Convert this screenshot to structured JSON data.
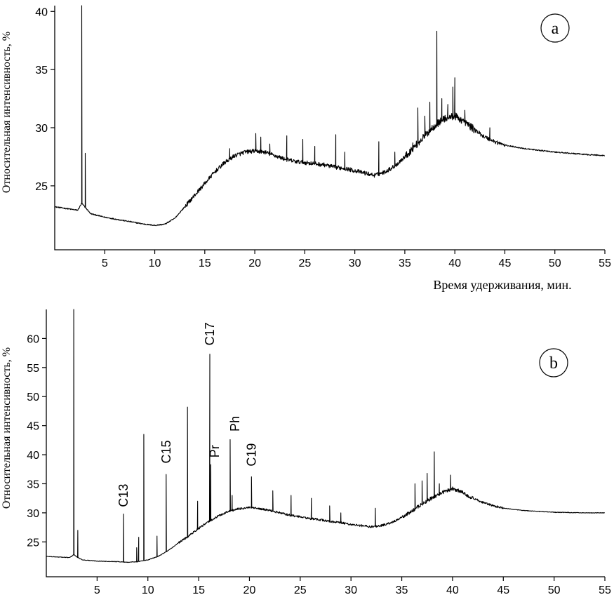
{
  "chart_data": [
    {
      "type": "line",
      "panel_label": "a",
      "xlabel": "Время удерживания, мин.",
      "ylabel": "Относительная интенсивность, %",
      "xlim": [
        0,
        55
      ],
      "ylim": [
        19.5,
        40.5
      ],
      "xticks": [
        5,
        10,
        15,
        20,
        25,
        30,
        35,
        40,
        45,
        50,
        55
      ],
      "yticks": [
        25,
        30,
        35,
        40
      ],
      "series": [
        {
          "name": "a",
          "baseline": [
            [
              0,
              23.2
            ],
            [
              2.3,
              22.9
            ],
            [
              2.7,
              23.5
            ],
            [
              3.2,
              23.0
            ],
            [
              3.6,
              22.6
            ],
            [
              5,
              22.3
            ],
            [
              7,
              22.0
            ],
            [
              9,
              21.7
            ],
            [
              10,
              21.6
            ],
            [
              11,
              21.7
            ],
            [
              12,
              22.2
            ],
            [
              13,
              23.2
            ],
            [
              14,
              24.2
            ],
            [
              15,
              25.2
            ],
            [
              16,
              26.2
            ],
            [
              17,
              27.0
            ],
            [
              18,
              27.6
            ],
            [
              19,
              27.9
            ],
            [
              20,
              28.0
            ],
            [
              21,
              27.9
            ],
            [
              22,
              27.6
            ],
            [
              23,
              27.3
            ],
            [
              24,
              27.1
            ],
            [
              25,
              27.0
            ],
            [
              26,
              26.9
            ],
            [
              27,
              26.8
            ],
            [
              28,
              26.6
            ],
            [
              29,
              26.5
            ],
            [
              30,
              26.3
            ],
            [
              31,
              26.1
            ],
            [
              32,
              25.9
            ],
            [
              33,
              26.2
            ],
            [
              34,
              26.7
            ],
            [
              35,
              27.5
            ],
            [
              36,
              28.4
            ],
            [
              37,
              29.3
            ],
            [
              38,
              30.2
            ],
            [
              39,
              30.8
            ],
            [
              40,
              31.0
            ],
            [
              41,
              30.5
            ],
            [
              42,
              29.8
            ],
            [
              43,
              29.2
            ],
            [
              44,
              28.8
            ],
            [
              45,
              28.5
            ],
            [
              47,
              28.2
            ],
            [
              50,
              27.9
            ],
            [
              53,
              27.7
            ],
            [
              55,
              27.6
            ]
          ],
          "peaks": [
            [
              2.7,
              40.5
            ],
            [
              3.05,
              27.8
            ],
            [
              14,
              24.3
            ],
            [
              17.5,
              28.2
            ],
            [
              20.1,
              29.5
            ],
            [
              20.6,
              29.2
            ],
            [
              21.5,
              28.6
            ],
            [
              23.2,
              29.3
            ],
            [
              24.8,
              29.0
            ],
            [
              26.0,
              28.4
            ],
            [
              28.1,
              29.4
            ],
            [
              29.0,
              27.9
            ],
            [
              32.4,
              28.8
            ],
            [
              34.0,
              27.9
            ],
            [
              35.8,
              28.7
            ],
            [
              36.3,
              31.7
            ],
            [
              37.0,
              31.0
            ],
            [
              37.5,
              32.2
            ],
            [
              38.2,
              38.3
            ],
            [
              38.7,
              32.5
            ],
            [
              39.3,
              32.0
            ],
            [
              39.8,
              33.5
            ],
            [
              40.0,
              34.3
            ],
            [
              41.0,
              31.5
            ],
            [
              43.5,
              30.0
            ]
          ]
        }
      ]
    },
    {
      "type": "line",
      "panel_label": "b",
      "xlabel": "",
      "ylabel": "Относительная интенсивность, %",
      "xlim": [
        0,
        55
      ],
      "ylim": [
        19,
        65
      ],
      "xticks": [
        5,
        10,
        15,
        20,
        25,
        30,
        35,
        40,
        45,
        50,
        55
      ],
      "yticks": [
        25,
        30,
        35,
        40,
        45,
        50,
        55,
        60
      ],
      "series": [
        {
          "name": "b",
          "baseline": [
            [
              0,
              22.5
            ],
            [
              2.3,
              22.3
            ],
            [
              2.7,
              22.8
            ],
            [
              3.2,
              22.2
            ],
            [
              3.6,
              21.9
            ],
            [
              5,
              21.7
            ],
            [
              7,
              21.6
            ],
            [
              8,
              21.5
            ],
            [
              9,
              21.6
            ],
            [
              10,
              21.9
            ],
            [
              11,
              22.5
            ],
            [
              12,
              23.5
            ],
            [
              13,
              24.8
            ],
            [
              14,
              26.0
            ],
            [
              15,
              27.3
            ],
            [
              16,
              28.5
            ],
            [
              17,
              29.5
            ],
            [
              18,
              30.3
            ],
            [
              19,
              30.7
            ],
            [
              20,
              30.9
            ],
            [
              21,
              30.7
            ],
            [
              22,
              30.4
            ],
            [
              23,
              30.0
            ],
            [
              24,
              29.6
            ],
            [
              25,
              29.3
            ],
            [
              26,
              29.0
            ],
            [
              27,
              28.8
            ],
            [
              28,
              28.5
            ],
            [
              29,
              28.3
            ],
            [
              30,
              28.0
            ],
            [
              31,
              27.8
            ],
            [
              32,
              27.6
            ],
            [
              33,
              27.8
            ],
            [
              34,
              28.3
            ],
            [
              35,
              29.2
            ],
            [
              36,
              30.3
            ],
            [
              37,
              31.5
            ],
            [
              38,
              32.6
            ],
            [
              39,
              33.5
            ],
            [
              40,
              34.2
            ],
            [
              41,
              33.5
            ],
            [
              42,
              32.5
            ],
            [
              43,
              31.8
            ],
            [
              44,
              31.2
            ],
            [
              45,
              30.8
            ],
            [
              47,
              30.4
            ],
            [
              50,
              30.1
            ],
            [
              53,
              30.0
            ],
            [
              55,
              30.0
            ]
          ],
          "peaks": [
            [
              2.7,
              65
            ],
            [
              3.1,
              27.0
            ],
            [
              7.6,
              29.8
            ],
            [
              8.9,
              24.0
            ],
            [
              9.1,
              25.8
            ],
            [
              9.6,
              43.5
            ],
            [
              10.9,
              26.0
            ],
            [
              11.8,
              36.6
            ],
            [
              13.9,
              48.2
            ],
            [
              14.9,
              32.0
            ],
            [
              16.1,
              57.3
            ],
            [
              16.2,
              38.3
            ],
            [
              18.1,
              42.6
            ],
            [
              18.3,
              33.0
            ],
            [
              20.2,
              36.2
            ],
            [
              22.3,
              33.8
            ],
            [
              24.1,
              33.0
            ],
            [
              26.1,
              32.5
            ],
            [
              27.9,
              31.2
            ],
            [
              29.0,
              30.0
            ],
            [
              32.4,
              30.8
            ],
            [
              36.3,
              35.0
            ],
            [
              37.0,
              35.5
            ],
            [
              37.5,
              36.8
            ],
            [
              38.2,
              40.5
            ],
            [
              38.7,
              35.0
            ],
            [
              39.8,
              36.5
            ],
            [
              41.0,
              33.8
            ]
          ]
        }
      ],
      "annotations": [
        {
          "text": "C13",
          "x": 7.6,
          "y": 31
        },
        {
          "text": "C15",
          "x": 11.8,
          "y": 38.5
        },
        {
          "text": "C17",
          "x": 16.1,
          "y": 58.8
        },
        {
          "text": "Pr",
          "x": 16.6,
          "y": 39.5
        },
        {
          "text": "Ph",
          "x": 18.6,
          "y": 44
        },
        {
          "text": "C19",
          "x": 20.2,
          "y": 38
        }
      ]
    }
  ]
}
